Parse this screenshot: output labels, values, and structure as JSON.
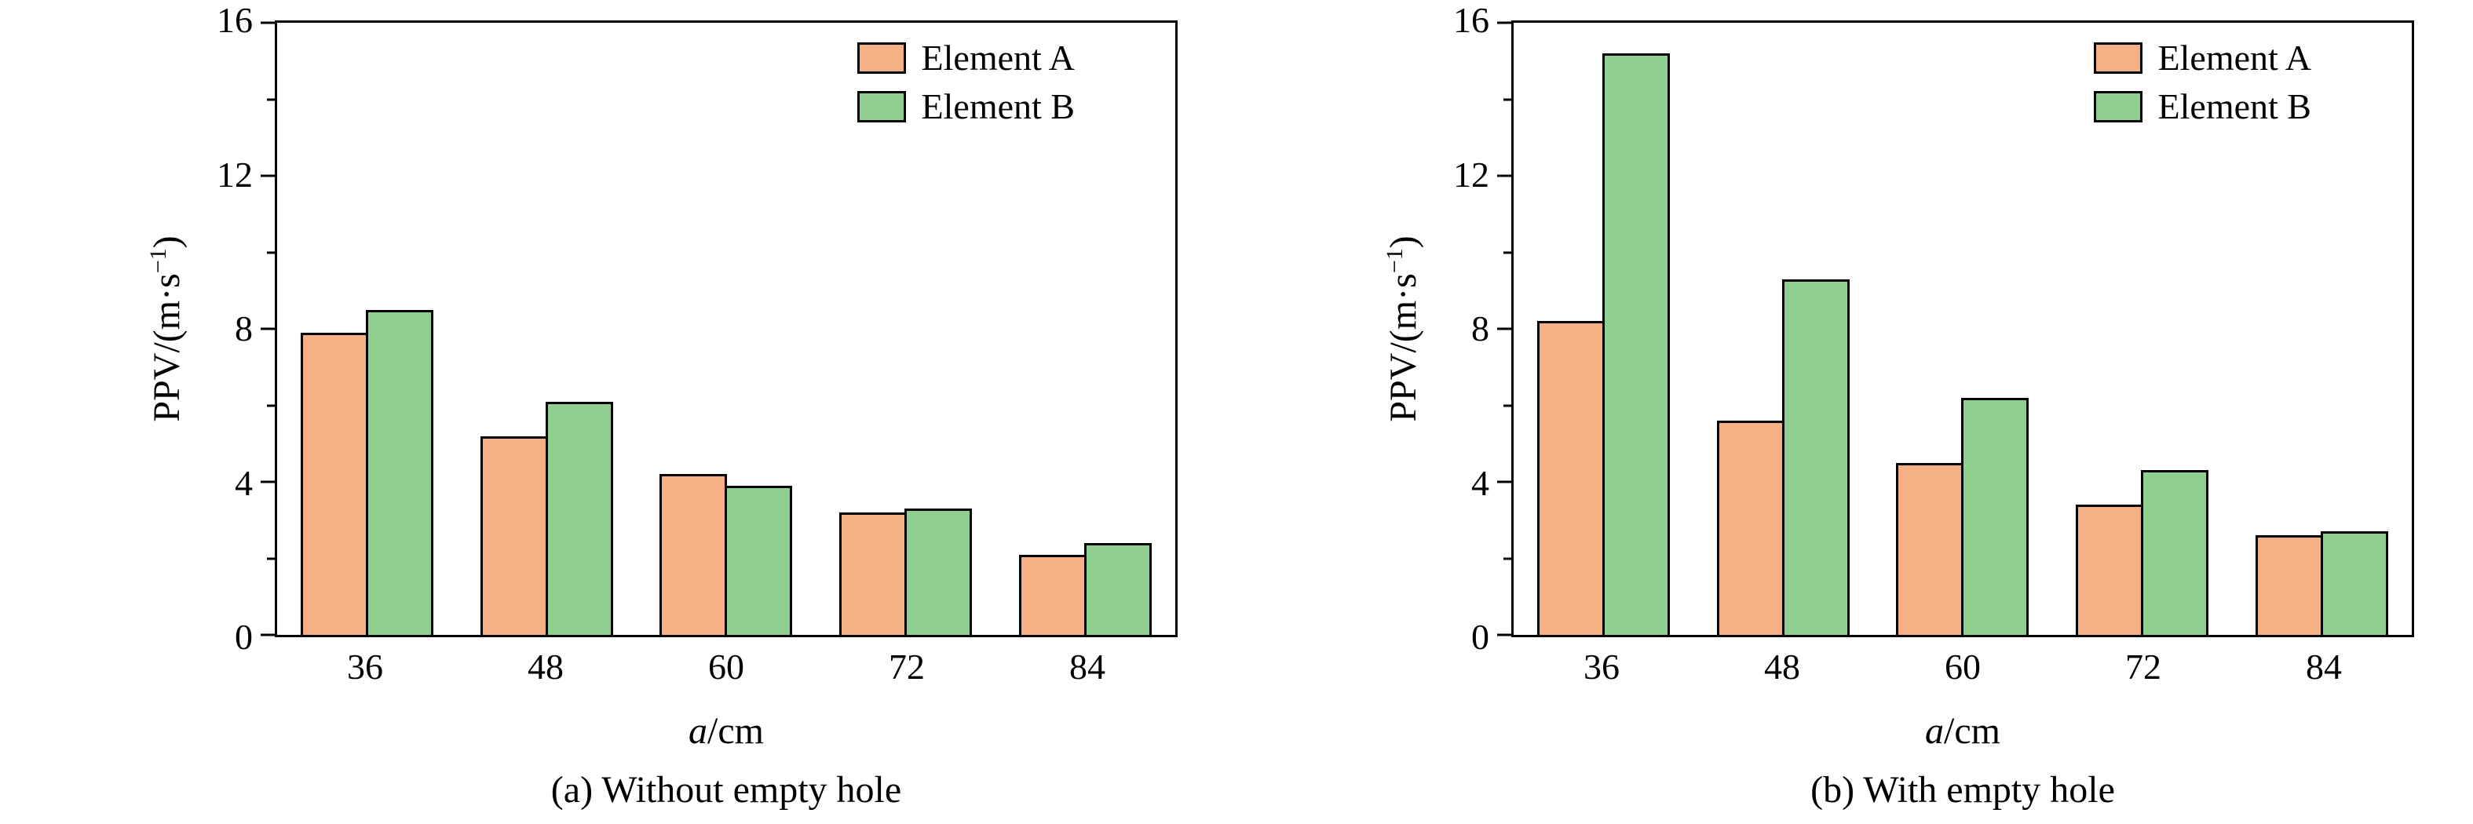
{
  "figure": {
    "background": "#ffffff",
    "axis_color": "#000000",
    "series_colors": {
      "element_a": "#F5B183",
      "element_b": "#8FD08E"
    }
  },
  "chart_data": [
    {
      "type": "bar",
      "caption": "(a) Without empty hole",
      "xlabel_var": "a",
      "xlabel_unit": "/cm",
      "ylabel_prefix": "PPV/(m·s",
      "ylabel_sup": "−1",
      "ylabel_suffix": ")",
      "categories": [
        "36",
        "48",
        "60",
        "72",
        "84"
      ],
      "series": [
        {
          "name": "Element A",
          "color": "#F5B183",
          "values": [
            7.9,
            5.2,
            4.2,
            3.2,
            2.1
          ]
        },
        {
          "name": "Element B",
          "color": "#8FD08E",
          "values": [
            8.5,
            6.1,
            3.9,
            3.3,
            2.4
          ]
        }
      ],
      "ylim": [
        0,
        16
      ],
      "yticks": [
        0,
        4,
        8,
        12,
        16
      ],
      "yticks_minor": [
        2,
        6,
        10,
        14
      ],
      "legend_position": "top-right",
      "grid": false
    },
    {
      "type": "bar",
      "caption": "(b) With empty hole",
      "xlabel_var": "a",
      "xlabel_unit": "/cm",
      "ylabel_prefix": "PPV/(m·s",
      "ylabel_sup": "−1",
      "ylabel_suffix": ")",
      "categories": [
        "36",
        "48",
        "60",
        "72",
        "84"
      ],
      "series": [
        {
          "name": "Element A",
          "color": "#F5B183",
          "values": [
            8.2,
            5.6,
            4.5,
            3.4,
            2.6
          ]
        },
        {
          "name": "Element B",
          "color": "#8FD08E",
          "values": [
            15.2,
            9.3,
            6.2,
            4.3,
            2.7
          ]
        }
      ],
      "ylim": [
        0,
        16
      ],
      "yticks": [
        0,
        4,
        8,
        12,
        16
      ],
      "yticks_minor": [
        2,
        6,
        10,
        14
      ],
      "legend_position": "top-right",
      "grid": false
    }
  ]
}
